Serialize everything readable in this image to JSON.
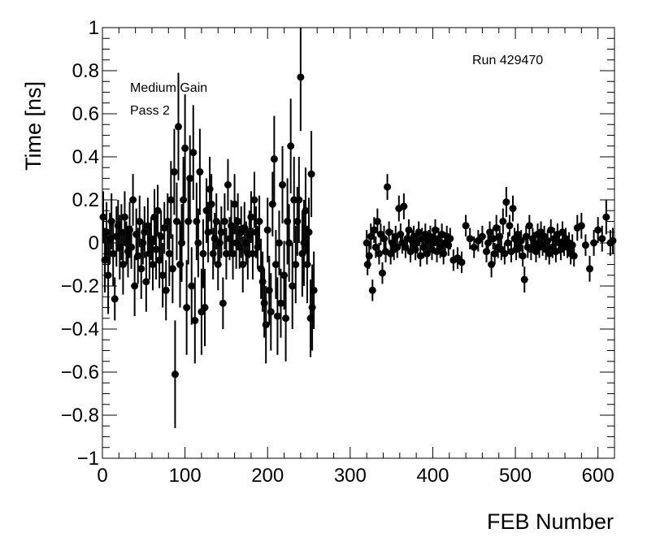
{
  "chart_data": {
    "type": "scatter",
    "title": "",
    "xlabel": "FEB Number",
    "ylabel": "Time [ns]",
    "xlim": [
      0,
      620
    ],
    "ylim": [
      -1,
      1
    ],
    "x_ticks": [
      0,
      100,
      200,
      300,
      400,
      500,
      600
    ],
    "x_tick_labels": [
      "0",
      "100",
      "200",
      "300",
      "400",
      "500",
      "600"
    ],
    "y_ticks": [
      -1,
      -0.8,
      -0.6,
      -0.4,
      -0.2,
      0,
      0.2,
      0.4,
      0.6,
      0.8,
      1
    ],
    "y_tick_labels": [
      "−1",
      "−0.8",
      "−0.6",
      "−0.4",
      "−0.2",
      "0",
      "0.2",
      "0.4",
      "0.6",
      "0.8",
      "1"
    ],
    "grid": false,
    "legend": "none",
    "annotations": {
      "gain": "Medium Gain",
      "pass": "Pass 2",
      "run": "Run 429470"
    },
    "marker_color": "#000000",
    "points": [
      [
        1,
        0.12,
        0.12
      ],
      [
        3,
        -0.08,
        0.15
      ],
      [
        5,
        0.05,
        0.14
      ],
      [
        7,
        -0.15,
        0.18
      ],
      [
        9,
        0.02,
        0.12
      ],
      [
        11,
        0.1,
        0.13
      ],
      [
        13,
        -0.05,
        0.15
      ],
      [
        15,
        -0.26,
        0.1
      ],
      [
        17,
        0.03,
        0.14
      ],
      [
        19,
        0.08,
        0.12
      ],
      [
        21,
        -0.02,
        0.15
      ],
      [
        23,
        0.05,
        0.13
      ],
      [
        25,
        -0.1,
        0.14
      ],
      [
        27,
        0.12,
        0.12
      ],
      [
        29,
        0.0,
        0.1
      ],
      [
        31,
        -0.04,
        0.12
      ],
      [
        33,
        0.06,
        0.13
      ],
      [
        35,
        -0.02,
        0.1
      ],
      [
        37,
        0.2,
        0.12
      ],
      [
        39,
        -0.2,
        0.14
      ],
      [
        41,
        0.04,
        0.12
      ],
      [
        43,
        -0.06,
        0.13
      ],
      [
        45,
        0.1,
        0.12
      ],
      [
        47,
        -0.12,
        0.14
      ],
      [
        49,
        0.0,
        0.1
      ],
      [
        51,
        0.05,
        0.12
      ],
      [
        53,
        -0.18,
        0.14
      ],
      [
        55,
        0.08,
        0.13
      ],
      [
        57,
        -0.05,
        0.12
      ],
      [
        59,
        0.02,
        0.1
      ],
      [
        61,
        -0.1,
        0.12
      ],
      [
        63,
        0.12,
        0.13
      ],
      [
        65,
        -0.03,
        0.14
      ],
      [
        67,
        0.15,
        0.12
      ],
      [
        69,
        -0.08,
        0.13
      ],
      [
        71,
        0.03,
        0.12
      ],
      [
        73,
        -0.15,
        0.15
      ],
      [
        75,
        0.07,
        0.12
      ],
      [
        77,
        -0.22,
        0.14
      ],
      [
        79,
        0.1,
        0.13
      ],
      [
        81,
        -0.05,
        0.15
      ],
      [
        83,
        0.2,
        0.18
      ],
      [
        85,
        -0.12,
        0.16
      ],
      [
        87,
        0.33,
        0.2
      ],
      [
        88,
        -0.61,
        0.25
      ],
      [
        90,
        0.1,
        0.18
      ],
      [
        92,
        0.54,
        0.25
      ],
      [
        94,
        -0.1,
        0.2
      ],
      [
        96,
        0.0,
        0.18
      ],
      [
        98,
        0.2,
        0.2
      ],
      [
        100,
        0.44,
        0.25
      ],
      [
        102,
        -0.3,
        0.22
      ],
      [
        104,
        0.1,
        0.2
      ],
      [
        106,
        0.3,
        0.2
      ],
      [
        108,
        -0.2,
        0.18
      ],
      [
        110,
        0.42,
        0.22
      ],
      [
        112,
        -0.36,
        0.2
      ],
      [
        114,
        0.1,
        0.18
      ],
      [
        116,
        0.0,
        0.16
      ],
      [
        118,
        0.33,
        0.2
      ],
      [
        120,
        -0.32,
        0.2
      ],
      [
        122,
        -0.05,
        0.16
      ],
      [
        124,
        -0.3,
        0.18
      ],
      [
        126,
        0.15,
        0.15
      ],
      [
        128,
        0.05,
        0.14
      ],
      [
        130,
        0.25,
        0.15
      ],
      [
        132,
        0.18,
        0.14
      ],
      [
        134,
        -0.05,
        0.12
      ],
      [
        136,
        0.02,
        0.12
      ],
      [
        138,
        0.1,
        0.13
      ],
      [
        140,
        -0.1,
        0.12
      ],
      [
        142,
        0.0,
        0.1
      ],
      [
        144,
        0.05,
        0.12
      ],
      [
        146,
        -0.28,
        0.12
      ],
      [
        148,
        0.1,
        0.13
      ],
      [
        150,
        -0.05,
        0.12
      ],
      [
        152,
        0.27,
        0.12
      ],
      [
        154,
        0.02,
        0.1
      ],
      [
        156,
        0.08,
        0.12
      ],
      [
        158,
        -0.05,
        0.12
      ],
      [
        160,
        0.18,
        0.14
      ],
      [
        162,
        0.0,
        0.12
      ],
      [
        164,
        0.1,
        0.13
      ],
      [
        166,
        -0.02,
        0.1
      ],
      [
        168,
        0.05,
        0.12
      ],
      [
        170,
        -0.1,
        0.13
      ],
      [
        172,
        0.07,
        0.12
      ],
      [
        174,
        0.0,
        0.1
      ],
      [
        176,
        -0.05,
        0.12
      ],
      [
        178,
        0.04,
        0.11
      ],
      [
        180,
        0.12,
        0.12
      ],
      [
        182,
        -0.05,
        0.12
      ],
      [
        184,
        0.2,
        0.13
      ],
      [
        186,
        0.05,
        0.12
      ],
      [
        188,
        -0.02,
        0.1
      ],
      [
        190,
        0.1,
        0.12
      ],
      [
        192,
        -0.12,
        0.14
      ],
      [
        194,
        -0.18,
        0.14
      ],
      [
        196,
        -0.28,
        0.16
      ],
      [
        198,
        -0.38,
        0.18
      ],
      [
        200,
        0.06,
        0.15
      ],
      [
        202,
        -0.22,
        0.16
      ],
      [
        204,
        -0.32,
        0.18
      ],
      [
        206,
        0.18,
        0.15
      ],
      [
        208,
        0.39,
        0.2
      ],
      [
        210,
        -0.1,
        0.16
      ],
      [
        212,
        -0.34,
        0.18
      ],
      [
        214,
        0.0,
        0.15
      ],
      [
        216,
        -0.28,
        0.16
      ],
      [
        218,
        0.27,
        0.18
      ],
      [
        220,
        -0.15,
        0.16
      ],
      [
        222,
        -0.35,
        0.2
      ],
      [
        224,
        0.1,
        0.2
      ],
      [
        226,
        0.0,
        0.18
      ],
      [
        228,
        0.45,
        0.22
      ],
      [
        230,
        -0.2,
        0.2
      ],
      [
        232,
        0.2,
        0.2
      ],
      [
        234,
        -0.1,
        0.18
      ],
      [
        236,
        0.1,
        0.16
      ],
      [
        238,
        0.2,
        0.2
      ],
      [
        240,
        0.77,
        0.25
      ],
      [
        242,
        -0.05,
        0.2
      ],
      [
        244,
        0.0,
        0.2
      ],
      [
        246,
        0.15,
        0.2
      ],
      [
        248,
        -0.1,
        0.18
      ],
      [
        250,
        0.05,
        0.16
      ],
      [
        252,
        -0.35,
        0.18
      ],
      [
        253,
        0.32,
        0.2
      ],
      [
        254,
        -0.3,
        0.2
      ],
      [
        256,
        -0.22,
        0.18
      ],
      [
        320,
        0.0,
        0.06
      ],
      [
        321,
        -0.1,
        0.05
      ],
      [
        323,
        -0.06,
        0.06
      ],
      [
        325,
        0.03,
        0.06
      ],
      [
        327,
        -0.22,
        0.05
      ],
      [
        329,
        0.06,
        0.06
      ],
      [
        331,
        -0.02,
        0.05
      ],
      [
        333,
        0.1,
        0.06
      ],
      [
        335,
        -0.05,
        0.05
      ],
      [
        337,
        0.04,
        0.05
      ],
      [
        339,
        -0.14,
        0.05
      ],
      [
        341,
        0.02,
        0.06
      ],
      [
        343,
        -0.04,
        0.05
      ],
      [
        345,
        0.26,
        0.06
      ],
      [
        347,
        0.05,
        0.05
      ],
      [
        349,
        -0.05,
        0.05
      ],
      [
        351,
        0.0,
        0.06
      ],
      [
        353,
        -0.03,
        0.05
      ],
      [
        355,
        0.03,
        0.05
      ],
      [
        357,
        -0.02,
        0.05
      ],
      [
        359,
        0.16,
        0.06
      ],
      [
        361,
        0.04,
        0.05
      ],
      [
        363,
        0.0,
        0.05
      ],
      [
        365,
        0.17,
        0.06
      ],
      [
        367,
        -0.02,
        0.05
      ],
      [
        369,
        0.02,
        0.05
      ],
      [
        371,
        0.06,
        0.05
      ],
      [
        373,
        -0.04,
        0.05
      ],
      [
        375,
        0.01,
        0.05
      ],
      [
        377,
        0.03,
        0.05
      ],
      [
        379,
        -0.03,
        0.05
      ],
      [
        381,
        0.0,
        0.05
      ],
      [
        383,
        0.05,
        0.05
      ],
      [
        385,
        -0.06,
        0.05
      ],
      [
        387,
        0.02,
        0.05
      ],
      [
        389,
        -0.02,
        0.05
      ],
      [
        391,
        0.04,
        0.05
      ],
      [
        393,
        -0.05,
        0.05
      ],
      [
        395,
        0.01,
        0.05
      ],
      [
        397,
        0.03,
        0.05
      ],
      [
        399,
        -0.03,
        0.05
      ],
      [
        401,
        0.0,
        0.05
      ],
      [
        403,
        0.06,
        0.05
      ],
      [
        405,
        -0.04,
        0.05
      ],
      [
        407,
        0.02,
        0.05
      ],
      [
        409,
        -0.02,
        0.05
      ],
      [
        411,
        0.04,
        0.05
      ],
      [
        413,
        -0.05,
        0.05
      ],
      [
        415,
        0.0,
        0.05
      ],
      [
        417,
        0.03,
        0.05
      ],
      [
        419,
        -0.01,
        0.05
      ],
      [
        421,
        0.02,
        0.05
      ],
      [
        425,
        -0.08,
        0.05
      ],
      [
        430,
        -0.07,
        0.05
      ],
      [
        435,
        -0.09,
        0.05
      ],
      [
        440,
        0.08,
        0.05
      ],
      [
        445,
        0.02,
        0.05
      ],
      [
        450,
        -0.02,
        0.05
      ],
      [
        455,
        0.01,
        0.05
      ],
      [
        460,
        0.03,
        0.05
      ],
      [
        465,
        -0.04,
        0.05
      ],
      [
        467,
        0.0,
        0.05
      ],
      [
        469,
        0.05,
        0.05
      ],
      [
        471,
        -0.1,
        0.06
      ],
      [
        473,
        0.02,
        0.05
      ],
      [
        475,
        -0.05,
        0.05
      ],
      [
        477,
        0.07,
        0.06
      ],
      [
        479,
        -0.02,
        0.05
      ],
      [
        481,
        0.03,
        0.05
      ],
      [
        483,
        -0.03,
        0.05
      ],
      [
        485,
        0.1,
        0.06
      ],
      [
        487,
        -0.05,
        0.05
      ],
      [
        489,
        0.19,
        0.07
      ],
      [
        491,
        0.0,
        0.05
      ],
      [
        493,
        0.08,
        0.05
      ],
      [
        495,
        -0.04,
        0.05
      ],
      [
        497,
        0.16,
        0.06
      ],
      [
        499,
        0.02,
        0.05
      ],
      [
        501,
        -0.03,
        0.05
      ],
      [
        503,
        0.04,
        0.05
      ],
      [
        505,
        -0.02,
        0.05
      ],
      [
        507,
        0.01,
        0.05
      ],
      [
        509,
        -0.06,
        0.05
      ],
      [
        511,
        -0.17,
        0.06
      ],
      [
        513,
        0.03,
        0.05
      ],
      [
        515,
        -0.02,
        0.05
      ],
      [
        517,
        0.08,
        0.05
      ],
      [
        519,
        -0.03,
        0.05
      ],
      [
        521,
        0.02,
        0.05
      ],
      [
        523,
        0.0,
        0.05
      ],
      [
        525,
        -0.04,
        0.05
      ],
      [
        527,
        0.04,
        0.05
      ],
      [
        529,
        -0.02,
        0.05
      ],
      [
        531,
        0.05,
        0.05
      ],
      [
        533,
        -0.01,
        0.05
      ],
      [
        535,
        0.03,
        0.05
      ],
      [
        537,
        -0.03,
        0.05
      ],
      [
        539,
        0.01,
        0.05
      ],
      [
        541,
        -0.05,
        0.05
      ],
      [
        543,
        0.06,
        0.05
      ],
      [
        545,
        -0.02,
        0.05
      ],
      [
        547,
        0.02,
        0.05
      ],
      [
        549,
        -0.04,
        0.05
      ],
      [
        551,
        0.04,
        0.05
      ],
      [
        553,
        0.0,
        0.05
      ],
      [
        555,
        -0.03,
        0.05
      ],
      [
        557,
        0.05,
        0.05
      ],
      [
        559,
        -0.01,
        0.05
      ],
      [
        561,
        0.02,
        0.05
      ],
      [
        563,
        -0.02,
        0.05
      ],
      [
        565,
        0.0,
        0.05
      ],
      [
        567,
        -0.05,
        0.05
      ],
      [
        569,
        -0.01,
        0.05
      ],
      [
        571,
        -0.06,
        0.05
      ],
      [
        575,
        0.07,
        0.06
      ],
      [
        580,
        0.08,
        0.06
      ],
      [
        585,
        -0.01,
        0.05
      ],
      [
        590,
        -0.12,
        0.06
      ],
      [
        595,
        0.0,
        0.06
      ],
      [
        600,
        0.06,
        0.06
      ],
      [
        605,
        0.02,
        0.06
      ],
      [
        610,
        0.12,
        0.08
      ],
      [
        615,
        0.0,
        0.06
      ],
      [
        618,
        0.01,
        0.06
      ]
    ]
  }
}
